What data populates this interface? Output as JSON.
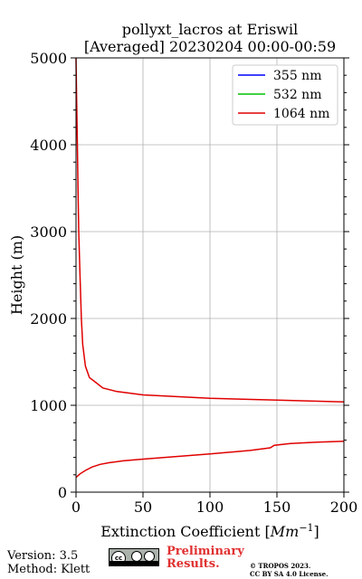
{
  "chart_data": {
    "type": "line",
    "title_line1": "pollyxt_lacros at Eriswil",
    "title_line2": "[Averaged] 20230204 00:00-00:59",
    "xlabel_text": "Extinction Coefficient [",
    "xlabel_unit_base": "Mm",
    "xlabel_unit_exp": "−1",
    "xlabel_close": "]",
    "ylabel": "Height (m)",
    "xlim": [
      0,
      200
    ],
    "ylim": [
      0,
      5000
    ],
    "xticks": [
      0,
      50,
      100,
      150,
      200
    ],
    "yticks": [
      0,
      1000,
      2000,
      3000,
      4000,
      5000
    ],
    "grid": true,
    "legend_position": "top-right",
    "series": [
      {
        "name": "355 nm",
        "color": "#0000ff",
        "x": [],
        "y": []
      },
      {
        "name": "532 nm",
        "color": "#00c000",
        "x": [],
        "y": []
      },
      {
        "name": "1064 nm",
        "color": "#e00000",
        "x": [
          0,
          3,
          7,
          12,
          18,
          25,
          35,
          50,
          75,
          100,
          130,
          145,
          148,
          160,
          180,
          200
        ],
        "y": [
          170,
          210,
          250,
          290,
          320,
          340,
          360,
          380,
          410,
          440,
          480,
          510,
          540,
          560,
          575,
          585
        ]
      }
    ],
    "series_upper": {
      "name": "1064 nm",
      "color": "#e00000",
      "x": [
        0,
        0.5,
        1,
        1.5,
        2,
        3,
        4,
        5,
        7,
        10,
        15,
        20,
        30,
        50,
        100,
        150,
        200
      ],
      "y": [
        5000,
        4500,
        4000,
        3500,
        3000,
        2500,
        2000,
        1700,
        1450,
        1320,
        1260,
        1200,
        1160,
        1120,
        1080,
        1060,
        1040
      ]
    }
  },
  "footer": {
    "version": "Version: 3.5",
    "method": "Method: Klett",
    "cc_label": "cc",
    "preliminary_line1": "Preliminary",
    "preliminary_line2": "Results.",
    "copyright_line1": "© TROPOS 2023.",
    "copyright_line2": "CC BY SA 4.0 License."
  }
}
